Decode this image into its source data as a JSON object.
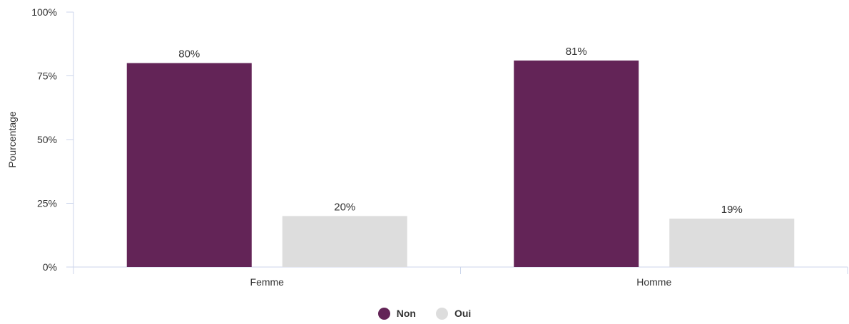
{
  "chart_data": {
    "type": "bar",
    "categories": [
      "Femme",
      "Homme"
    ],
    "series": [
      {
        "name": "Non",
        "values": [
          80,
          81
        ],
        "labels": [
          "80%",
          "81%"
        ],
        "color": "#632457"
      },
      {
        "name": "Oui",
        "values": [
          20,
          19
        ],
        "labels": [
          "20%",
          "19%"
        ],
        "color": "#dddddd"
      }
    ],
    "ylabel": "Pourcentage",
    "xlabel": "",
    "ylim": [
      0,
      100
    ],
    "yticks": [
      0,
      25,
      50,
      75,
      100
    ],
    "ytick_labels": [
      "0%",
      "25%",
      "50%",
      "75%",
      "100%"
    ],
    "grid": false,
    "legend_position": "bottom-center"
  }
}
